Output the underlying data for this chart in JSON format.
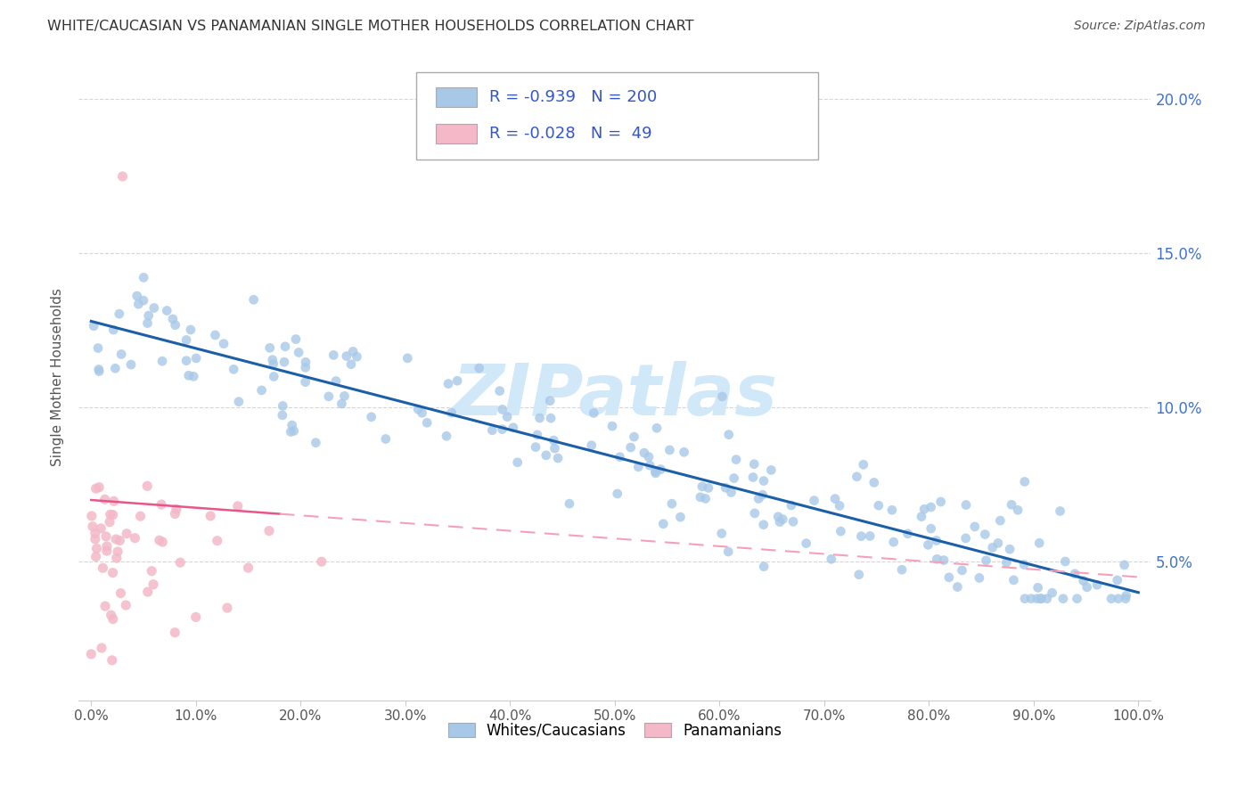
{
  "title": "WHITE/CAUCASIAN VS PANAMANIAN SINGLE MOTHER HOUSEHOLDS CORRELATION CHART",
  "source": "Source: ZipAtlas.com",
  "ylabel": "Single Mother Households",
  "ytick_labels": [
    "5.0%",
    "10.0%",
    "15.0%",
    "20.0%"
  ],
  "ytick_positions": [
    0.05,
    0.1,
    0.15,
    0.2
  ],
  "xtick_labels": [
    "0.0%",
    "10.0%",
    "20.0%",
    "30.0%",
    "40.0%",
    "50.0%",
    "60.0%",
    "70.0%",
    "80.0%",
    "90.0%",
    "100.0%"
  ],
  "xtick_positions": [
    0.0,
    0.1,
    0.2,
    0.3,
    0.4,
    0.5,
    0.6,
    0.7,
    0.8,
    0.9,
    1.0
  ],
  "xmin": -0.012,
  "xmax": 1.012,
  "ymin": 0.005,
  "ymax": 0.215,
  "blue_color": "#a8c8e8",
  "pink_color": "#f4b8c8",
  "blue_line_color": "#1a5fa8",
  "pink_line_solid_color": "#e8558a",
  "pink_line_dash_color": "#f4a0b8",
  "watermark_color": "#d0e8f8",
  "title_color": "#333333",
  "source_color": "#555555",
  "ytick_color": "#4472c4",
  "xtick_color": "#555555",
  "ylabel_color": "#555555",
  "legend_r_blue": "-0.939",
  "legend_n_blue": "200",
  "legend_r_pink": "-0.028",
  "legend_n_pink": "49",
  "blue_intercept": 0.128,
  "blue_slope": -0.088,
  "pink_intercept": 0.07,
  "pink_slope": -0.025,
  "legend_labels": [
    "Whites/Caucasians",
    "Panamanians"
  ]
}
